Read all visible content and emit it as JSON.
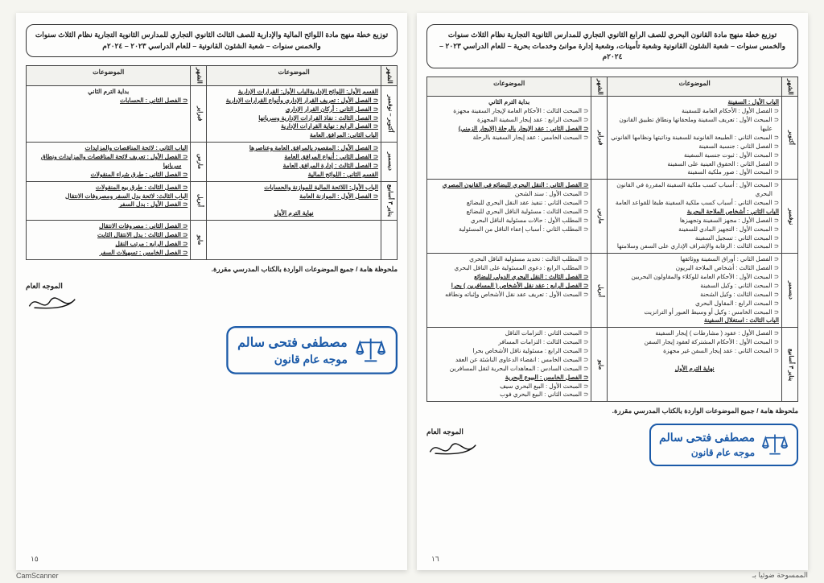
{
  "footer": {
    "camscanner": "CamScanner",
    "scantext": "الممسوحة ضوئيا بـ"
  },
  "pages": [
    {
      "page_number": "١٦",
      "header": "توزيع خطة منهج مادة القانون البحري للصف الرابع الثانوي التجاري للمدارس الثانوية التجارية نظام الثلاث سنوات والخمس سنوات – شعبة الشئون القانونية وشعبة تأمينات، وشعبة إدارة موانئ وخدمات بحرية – للعام الدراسي ٢٠٢٣ – ٢٠٢٤م",
      "thead": [
        "الشهر",
        "الموضوعات",
        "الشهر",
        "الموضوعات"
      ],
      "rows": [
        {
          "m1": "أكتوبر",
          "c1": "<span class='under'>الباب الأول : السفينة</span>\n<span class='item'>الفصل الأول : الأحكام العامة للسفينة</span>\n<span class='item'>المبحث الأول : تعريف السفينة وملحقاتها ونطاق تطبيق القانون عليها</span>\n<span class='item'>المبحث الثاني : الطبيعة القانونية للسفينة وذاتيتها ونظامها القانوني</span>\n<span class='item'>الفصل الثاني : جنسية السفينة</span>\n<span class='item'>المبحث الأول : ثبوت جنسية السفينة</span>\n<span class='item'>الفصل الثاني : الحقوق العينية على السفينة</span>\n<span class='item'>المبحث الأول : صور ملكية السفينة</span>",
          "m2": "فبراير",
          "c2": "<span class='bold center' style='display:block'>بداية الترم الثاني</span>\n<span class='item'>المبحث الثالث : الأحكام العامة لإيجار السفينة مجهزة</span>\n<span class='item'>المبحث الرابع : عقد إيجار السفينة المجهزة</span>\n<span class='item under'>الفصل الثاني : عقد الإيجار بالرحلة (الإيجار الزمني)</span>\n<span class='item'>المبحث الخامس : عقد إيجار السفينة بالرحلة</span>"
        },
        {
          "m1": "نوفمبر",
          "c1": "<span class='item'>المبحث الأول : أسباب كسب ملكية السفينة المقررة في القانون البحري</span>\n<span class='item'>المبحث الثاني : أسباب كسب ملكية السفينة طبقا للقواعد العامة</span>\n<span class='under'>الباب الثاني : أشخاص الملاحة البحرية</span>\n<span class='item'>الفصل الأول : مجهز السفينة وتجهيزها</span>\n<span class='item'>المبحث الأول : التجهيز المادي للسفينة</span>\n<span class='item'>المبحث الثاني : تسجيل السفينة</span>\n<span class='item'>المبحث الثالث : الرقابة والإشراف الإداري على السفن وسلامتها</span>",
          "m2": "مارس",
          "c2": "<span class='item under'>الفصل الثاني : النقل البحري للبضائع في القانون المصري</span>\n<span class='item'>المبحث الأول : سند الشحن</span>\n<span class='item'>المبحث الثاني : تنفيذ عقد النقل البحري للبضائع</span>\n<span class='item'>المبحث الثالث : مسئولية الناقل البحري للبضائع</span>\n<span class='item'>المطلب الأول : حالات مسئولية الناقل البحري</span>\n<span class='item'>المطلب الثاني : أسباب إعفاء الناقل من المسئولية</span>"
        },
        {
          "m1": "ديسمبر",
          "c1": "<span class='item'>الفصل الثاني : أوراق السفينة ووثائقها</span>\n<span class='item'>الفصل الثالث : أشخاص الملاحة البريون</span>\n<span class='item'>المبحث الأول : الأحكام العامة للوكلاء والمقاولون البحريين</span>\n<span class='item'>المبحث الثاني : وكيل السفينة</span>\n<span class='item'>المبحث الثالث : وكيل الشحنة</span>\n<span class='item'>المبحث الرابع : المقاول البحري</span>\n<span class='item'>المبحث الخامس : وكيل أو وسيط العبور أو الترانزيت</span>\n<span class='under'>الباب الثالث : استغلال السفينة</span>",
          "m2": "أبريل",
          "c2": "<span class='item'>المطلب الثالث : تحديد مسئولية الناقل البحري</span>\n<span class='item'>المطلب الرابع : دعوى المسئولية على الناقل البحري</span>\n<span class='item under'>الفصل الثالث : النقل البحري الدولي للبضائع</span>\n<span class='item under'>الفصل الرابع : عقد نقل الأشخاص ( المسافرين ) بحرا</span>\n<span class='item'>المبحث الأول : تعريف عقد نقل الأشخاص وإثباته ونطاقه</span>"
        },
        {
          "m1": "يناير ٣ أسابيع",
          "c1": "<span class='item'>الفصل الأول : عقود ( مشارطات ) إيجار السفينة</span>\n<span class='item'>المبحث الأول : الأحكام المشتركة لعقود إيجار السفن</span>\n<span class='item'>المبحث الثاني : عقد إيجار السفن غير مجهزة</span>\n<br><span class='under center' style='display:block'>نهاية الترم الأول</span>",
          "m2": "مايو",
          "c2": "<span class='item'>المبحث الثاني : التزامات الناقل</span>\n<span class='item'>المبحث الثالث : التزامات المسافر</span>\n<span class='item'>المبحث الرابع : مسئولية ناقل الأشخاص بحرا</span>\n<span class='item'>المبحث الخامس : انقضاء الدعاوى الناشئة عن العقد</span>\n<span class='item'>المبحث السادس : المعاهدات البحرية لنقل المسافرين</span>\n<span class='item under'>الفصل الخامس : البيوع البحرية</span>\n<span class='item'>المبحث الأول : البيع البحري سيف</span>\n<span class='item'>المبحث الثاني : البيع البحري فوب</span>"
        }
      ],
      "note": "ملحوظة هامة / جميع الموضوعات الواردة بالكتاب المدرسي مقررة.",
      "stamp": {
        "name": "مصطفى فتحى سالم",
        "role": "موجه عام قانون"
      },
      "sig_label": "الموجه العام"
    },
    {
      "page_number": "١٥",
      "header": "توزيع خطة منهج مادة اللوائح المالية والإدارية للصف الثالث الثانوي التجاري للمدارس الثانوية التجارية نظام الثلاث سنوات والخمس سنوات – شعبة الشئون القانونية – للعام الدراسي ٢٠٢٣ – ٢٠٢٤م",
      "thead": [
        "الشهر",
        "الموضوعات",
        "الشهر",
        "الموضوعات"
      ],
      "rows": [
        {
          "m1": "أكتوبر – نوفمبر",
          "c1": "<span class='under'>القسم الأول: اللوائح الإدارية</span>\n<span class='under'>الباب الأول: القرارات الإدارية</span>\n<span class='item under'>الفصل الأول : تعريف القرار الإداري وأنواع القرارات الإدارية</span>\n<span class='item under'>الفصل الثاني : أركان القرار الإداري</span>\n<span class='item under'>الفصل الثالث : نفاذ القرارات الإدارية وسريانها</span>\n<span class='item under'>الفصل الرابع : نهاية القرارات الإدارية</span>\n<span class='under'>الباب الثاني: المرافق العامة</span>",
          "m2": "فبراير",
          "c2": "<span class='bold center' style='display:block'>بداية الترم الثاني</span>\n<span class='item under'>الفصل الثاني : الحسابات</span>"
        },
        {
          "m1": "ديسمبر",
          "c1": "<span class='item under'>الفصل الأول : المقصود بالمرافق العامة وعناصرها</span>\n<span class='item under'>الفصل الثاني : أنواع المرافق العامة</span>\n<span class='item under'>الفصل الثالث : إدارة المرافق العامة</span>\n<span class='under'>القسم الثاني : اللوائح المالية</span>",
          "m2": "مارس",
          "c2": "<span class='under'>الباب الثاني : لائحة المناقصات والمزايدات</span>\n<span class='item under'>الفصل الأول : تعريف لائحة المناقصات والمزايدات ونطاق سريانها</span>\n<span class='item under'>الفصل الثاني : طرق شراء المنقولات</span>"
        },
        {
          "m1": "يناير ٣ أسابيع",
          "c1": "<span class='under'>الباب الأول: اللائحة المالية للموازنة والحسابات</span>\n<span class='item under'>الفصل الأول : الموازنة العامة</span>\n<br><span class='under center' style='display:block'>نهاية الترم الأول</span>",
          "m2": "أبريل",
          "c2": "<span class='item under'>الفصل الثالث : طرق بيع المنقولات</span>\n<span class='under'>الباب الثالث: لائحة بدل السفر ومصروفات الانتقال</span>\n<span class='item under'>الفصل الأول : بدل السفر</span>"
        },
        {
          "m1": "",
          "c1": "",
          "m2": "مايو",
          "c2": "<span class='item under'>الفصل الثاني : مصروفات الانتقال</span>\n<span class='item under'>الفصل الثالث : بدل الانتقال الثابت</span>\n<span class='item under'>الفصل الرابع : مرتب النقل</span>\n<span class='item under'>الفصل الخامس : تسهيلات السفر</span>"
        }
      ],
      "note": "ملحوظة هامة / جميع الموضوعات الواردة بالكتاب المدرسي مقررة.",
      "stamp": {
        "name": "مصطفى فتحى سالم",
        "role": "موجه عام قانون"
      },
      "sig_label": "الموجه العام"
    }
  ]
}
